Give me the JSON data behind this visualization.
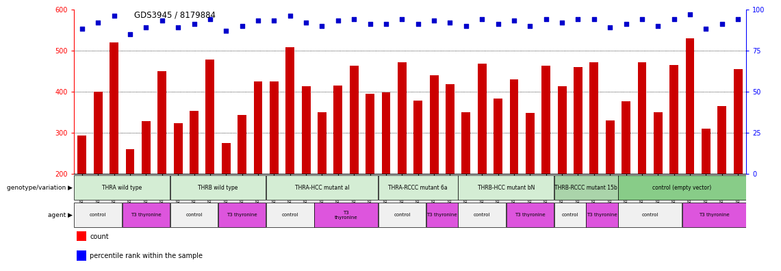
{
  "title": "GDS3945 / 8179884",
  "samples": [
    "GSM721654",
    "GSM721655",
    "GSM721656",
    "GSM721657",
    "GSM721658",
    "GSM721659",
    "GSM721660",
    "GSM721661",
    "GSM721662",
    "GSM721663",
    "GSM721664",
    "GSM721665",
    "GSM721666",
    "GSM721667",
    "GSM721668",
    "GSM721669",
    "GSM721670",
    "GSM721671",
    "GSM721672",
    "GSM721673",
    "GSM721674",
    "GSM721675",
    "GSM721676",
    "GSM721677",
    "GSM721678",
    "GSM721679",
    "GSM721680",
    "GSM721681",
    "GSM721682",
    "GSM721683",
    "GSM721684",
    "GSM721685",
    "GSM721686",
    "GSM721687",
    "GSM721688",
    "GSM721689",
    "GSM721690",
    "GSM721691",
    "GSM721692",
    "GSM721693",
    "GSM721694",
    "GSM721695"
  ],
  "bar_values": [
    293,
    400,
    520,
    260,
    328,
    450,
    322,
    352,
    478,
    275,
    343,
    424,
    425,
    507,
    413,
    350,
    415,
    463,
    395,
    398,
    471,
    378,
    440,
    417,
    350,
    467,
    383,
    430,
    348,
    463,
    412,
    460,
    471,
    330,
    376,
    471,
    350,
    465,
    530,
    310,
    365,
    455
  ],
  "percentile_values": [
    88,
    92,
    96,
    85,
    89,
    93,
    89,
    91,
    94,
    87,
    90,
    93,
    93,
    96,
    92,
    90,
    93,
    94,
    91,
    91,
    94,
    91,
    93,
    92,
    90,
    94,
    91,
    93,
    90,
    94,
    92,
    94,
    94,
    89,
    91,
    94,
    90,
    94,
    97,
    88,
    91,
    94
  ],
  "ylim_left": [
    200,
    600
  ],
  "ylim_right": [
    0,
    100
  ],
  "yticks_left": [
    200,
    300,
    400,
    500,
    600
  ],
  "yticks_right": [
    0,
    25,
    50,
    75,
    100
  ],
  "bar_color": "#cc0000",
  "dot_color": "#0000cc",
  "bg_color": "#f0f0f0",
  "genotype_groups": [
    {
      "label": "THRA wild type",
      "start": 0,
      "end": 5,
      "color": "#d4edd4"
    },
    {
      "label": "THRB wild type",
      "start": 6,
      "end": 11,
      "color": "#d4edd4"
    },
    {
      "label": "THRA-HCC mutant al",
      "start": 12,
      "end": 18,
      "color": "#d4edd4"
    },
    {
      "label": "THRA-RCCC mutant 6a",
      "start": 19,
      "end": 23,
      "color": "#d4edd4"
    },
    {
      "label": "THRB-HCC mutant bN",
      "start": 24,
      "end": 29,
      "color": "#d4edd4"
    },
    {
      "label": "THRB-RCCC mutant 15b",
      "start": 30,
      "end": 33,
      "color": "#aad4aa"
    },
    {
      "label": "control (empty vector)",
      "start": 34,
      "end": 41,
      "color": "#88cc88"
    }
  ],
  "agent_groups": [
    {
      "label": "control",
      "start": 0,
      "end": 2,
      "color": "#f0f0f0"
    },
    {
      "label": "T3 thyronine",
      "start": 3,
      "end": 5,
      "color": "#dd55dd"
    },
    {
      "label": "control",
      "start": 6,
      "end": 8,
      "color": "#f0f0f0"
    },
    {
      "label": "T3 thyronine",
      "start": 9,
      "end": 11,
      "color": "#dd55dd"
    },
    {
      "label": "control",
      "start": 12,
      "end": 14,
      "color": "#f0f0f0"
    },
    {
      "label": "T3\nthyronine",
      "start": 15,
      "end": 18,
      "color": "#dd55dd"
    },
    {
      "label": "control",
      "start": 19,
      "end": 21,
      "color": "#f0f0f0"
    },
    {
      "label": "T3 thyronine",
      "start": 22,
      "end": 23,
      "color": "#dd55dd"
    },
    {
      "label": "control",
      "start": 24,
      "end": 26,
      "color": "#f0f0f0"
    },
    {
      "label": "T3 thyronine",
      "start": 27,
      "end": 29,
      "color": "#dd55dd"
    },
    {
      "label": "control",
      "start": 30,
      "end": 31,
      "color": "#f0f0f0"
    },
    {
      "label": "T3 thyronine",
      "start": 32,
      "end": 33,
      "color": "#dd55dd"
    },
    {
      "label": "control",
      "start": 34,
      "end": 37,
      "color": "#f0f0f0"
    },
    {
      "label": "T3 thyronine",
      "start": 38,
      "end": 41,
      "color": "#dd55dd"
    }
  ]
}
